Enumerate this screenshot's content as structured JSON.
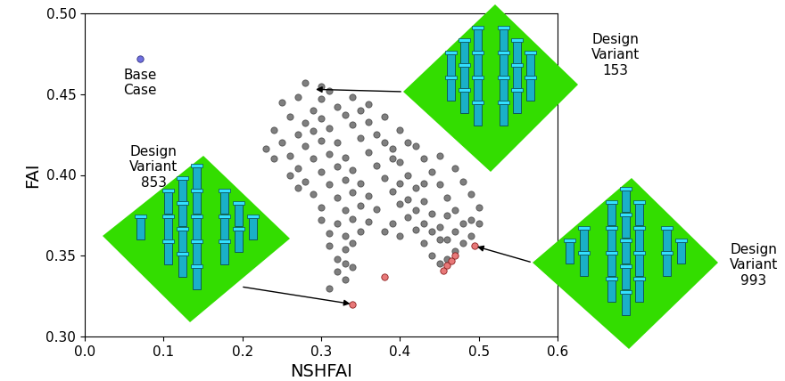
{
  "chart_data": {
    "type": "scatter",
    "xlabel": "NSHFAI",
    "ylabel": "FAI",
    "xlim": [
      0,
      0.6
    ],
    "ylim": [
      0.3,
      0.5
    ],
    "xticks": [
      {
        "value": 0,
        "label": "0.0"
      },
      0.1,
      0.2,
      0.3,
      0.4,
      0.5,
      0.6
    ],
    "yticks": [
      {
        "value": 0.3,
        "label": "0.30"
      },
      0.35,
      {
        "value": 0.4,
        "label": "0.40"
      },
      0.45,
      {
        "value": 0.5,
        "label": "0.50"
      }
    ],
    "series": [
      {
        "color": "#000000",
        "marker": "circle",
        "x": [
          0.28,
          0.3,
          0.31,
          0.27,
          0.25,
          0.29,
          0.32,
          0.26,
          0.28,
          0.3,
          0.33,
          0.35,
          0.24,
          0.27,
          0.29,
          0.31,
          0.34,
          0.36,
          0.38,
          0.25,
          0.28,
          0.3,
          0.32,
          0.35,
          0.37,
          0.4,
          0.26,
          0.29,
          0.31,
          0.33,
          0.36,
          0.39,
          0.42,
          0.27,
          0.3,
          0.32,
          0.34,
          0.37,
          0.4,
          0.43,
          0.45,
          0.28,
          0.31,
          0.33,
          0.35,
          0.38,
          0.41,
          0.44,
          0.47,
          0.29,
          0.32,
          0.34,
          0.36,
          0.39,
          0.42,
          0.45,
          0.48,
          0.3,
          0.33,
          0.35,
          0.37,
          0.4,
          0.43,
          0.46,
          0.49,
          0.3,
          0.32,
          0.34,
          0.36,
          0.41,
          0.44,
          0.47,
          0.5,
          0.31,
          0.33,
          0.35,
          0.42,
          0.45,
          0.48,
          0.31,
          0.33,
          0.34,
          0.43,
          0.46,
          0.49,
          0.32,
          0.33,
          0.44,
          0.47,
          0.32,
          0.33,
          0.45,
          0.31,
          0.34,
          0.46,
          0.4,
          0.39,
          0.38,
          0.27,
          0.26,
          0.24,
          0.23,
          0.4,
          0.41,
          0.42,
          0.43,
          0.44,
          0.45,
          0.47,
          0.48,
          0.49,
          0.36,
          0.34,
          0.3,
          0.38,
          0.39,
          0.41,
          0.43,
          0.46,
          0.5
        ],
        "y": [
          0.457,
          0.455,
          0.452,
          0.448,
          0.445,
          0.44,
          0.442,
          0.436,
          0.432,
          0.435,
          0.437,
          0.44,
          0.428,
          0.425,
          0.427,
          0.429,
          0.431,
          0.433,
          0.436,
          0.42,
          0.418,
          0.421,
          0.42,
          0.423,
          0.425,
          0.428,
          0.412,
          0.41,
          0.413,
          0.411,
          0.414,
          0.416,
          0.418,
          0.404,
          0.402,
          0.405,
          0.403,
          0.406,
          0.408,
          0.41,
          0.412,
          0.396,
          0.394,
          0.397,
          0.395,
          0.398,
          0.4,
          0.402,
          0.404,
          0.388,
          0.386,
          0.389,
          0.387,
          0.39,
          0.392,
          0.394,
          0.396,
          0.38,
          0.378,
          0.381,
          0.379,
          0.382,
          0.384,
          0.386,
          0.388,
          0.372,
          0.37,
          0.373,
          0.371,
          0.374,
          0.376,
          0.378,
          0.38,
          0.364,
          0.362,
          0.365,
          0.366,
          0.368,
          0.37,
          0.356,
          0.354,
          0.358,
          0.358,
          0.36,
          0.362,
          0.348,
          0.345,
          0.35,
          0.353,
          0.34,
          0.335,
          0.345,
          0.33,
          0.343,
          0.348,
          0.362,
          0.37,
          0.365,
          0.392,
          0.4,
          0.41,
          0.416,
          0.395,
          0.385,
          0.378,
          0.37,
          0.365,
          0.36,
          0.365,
          0.358,
          0.372,
          0.444,
          0.448,
          0.447,
          0.42,
          0.41,
          0.42,
          0.395,
          0.375,
          0.37
        ]
      },
      {
        "color": "#e87878",
        "marker": "circle",
        "x": [
          0.34,
          0.38,
          0.455,
          0.46,
          0.465,
          0.47,
          0.495
        ],
        "y": [
          0.32,
          0.337,
          0.341,
          0.344,
          0.347,
          0.35,
          0.356
        ]
      },
      {
        "name": "Base\nCase",
        "color": "#7070e0",
        "marker": "circle",
        "x": [
          0.07
        ],
        "y": [
          0.472
        ]
      }
    ],
    "annotations": [
      {
        "text": "Design\nVariant\n153",
        "x": 0.29,
        "y": 0.453
      },
      {
        "text": "Design\nVariant\n853",
        "x": 0.34,
        "y": 0.32
      },
      {
        "text": "Design\nVariant\n993",
        "x": 0.495,
        "y": 0.356
      }
    ]
  }
}
